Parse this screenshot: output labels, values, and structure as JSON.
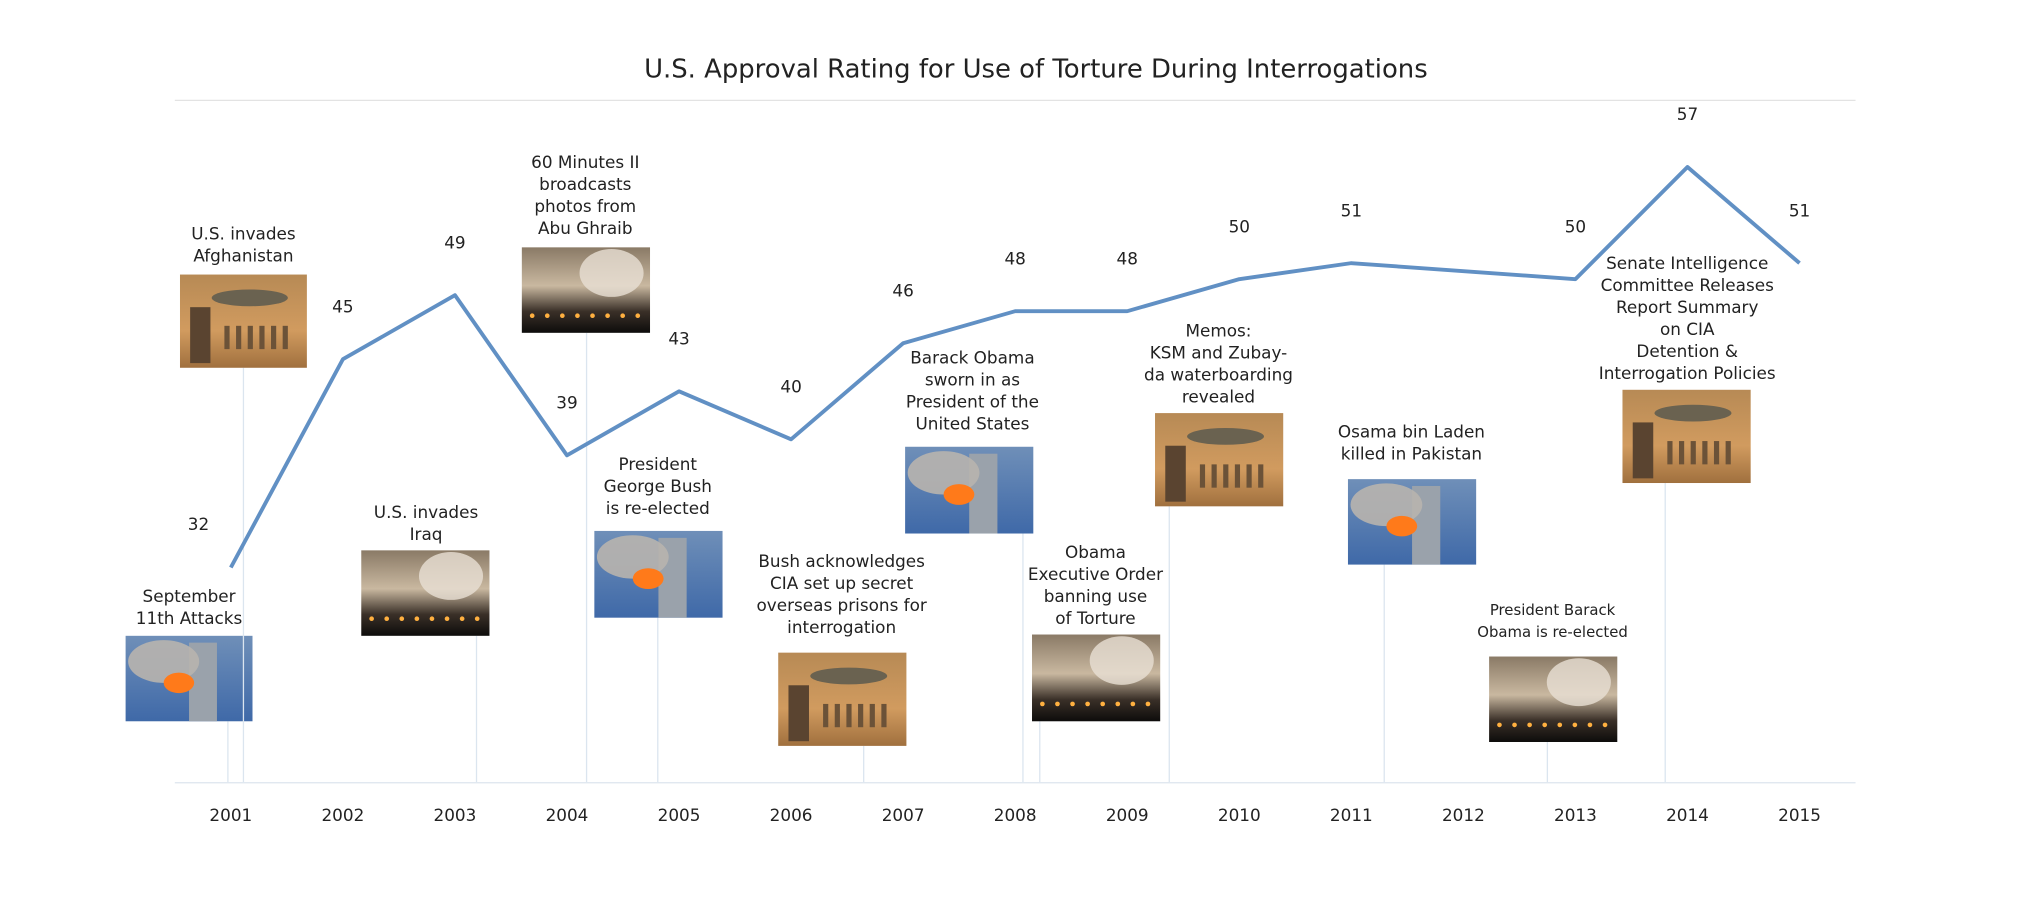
{
  "chart_data": {
    "type": "line",
    "title": "U.S. Approval Rating for Use of Torture During Interrogations",
    "x": [
      2001,
      2002,
      2003,
      2004,
      2005,
      2006,
      2007,
      2008,
      2009,
      2010,
      2011,
      2013,
      2014,
      2015
    ],
    "values": [
      32,
      45,
      49,
      39,
      43,
      40,
      46,
      48,
      48,
      50,
      51,
      50,
      57,
      51
    ],
    "color": "#6190c4",
    "xlim": [
      2000.5,
      2015.5
    ],
    "xticks": [
      2001,
      2002,
      2003,
      2004,
      2005,
      2006,
      2007,
      2008,
      2009,
      2010,
      2011,
      2012,
      2013,
      2014,
      2015
    ],
    "ylim": [
      18.6,
      61.2
    ],
    "annotations": [
      {
        "text": [
          "September",
          "11th Attacks"
        ]
      },
      {
        "text": [
          "U.S. invades",
          "Afghanistan"
        ]
      },
      {
        "text": [
          "U.S. invades",
          "Iraq"
        ]
      },
      {
        "text": [
          "60 Minutes II",
          "broadcasts",
          "photos from",
          "Abu Ghraib"
        ]
      },
      {
        "text": [
          "President",
          "George Bush",
          "is re-elected"
        ]
      },
      {
        "text": [
          "Bush acknowledges",
          "CIA set up secret",
          "overseas prisons for",
          "interrogation"
        ]
      },
      {
        "text": [
          "Barack Obama",
          "sworn in as",
          "President of the",
          "United States"
        ]
      },
      {
        "text": [
          "Obama",
          "Executive Order",
          "banning use",
          "of Torture"
        ]
      },
      {
        "text": [
          "Memos:",
          "KSM and Zubay-",
          "da waterboarding",
          "revealed"
        ]
      },
      {
        "text": [
          "Osama bin Laden",
          "killed in Pakistan"
        ]
      },
      {
        "text": [
          "President Barack",
          "Obama is re-elected"
        ]
      },
      {
        "text": [
          "Senate Intelligence",
          "Committee Releases",
          "Report Summary",
          "on CIA",
          "Detention &",
          "Interrogation Policies"
        ]
      }
    ]
  }
}
